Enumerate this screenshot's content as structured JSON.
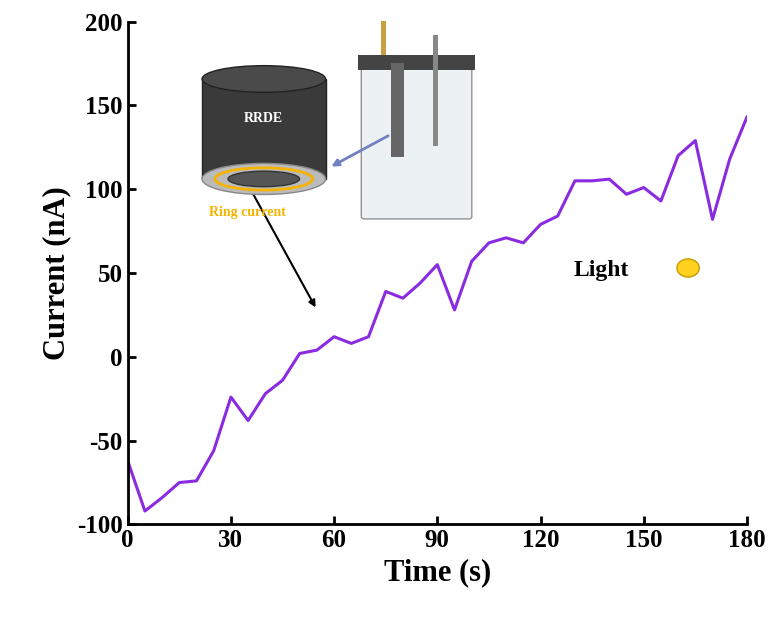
{
  "chart_data": {
    "type": "line",
    "x_label": "Time (s)",
    "y_label": "Current (nA)",
    "x": [
      0,
      5,
      10,
      15,
      20,
      25,
      30,
      35,
      40,
      45,
      50,
      55,
      60,
      65,
      70,
      75,
      80,
      85,
      90,
      95,
      100,
      105,
      110,
      115,
      120,
      125,
      130,
      135,
      140,
      145,
      150,
      155,
      160,
      165,
      170,
      175,
      180
    ],
    "values": [
      -62,
      -92,
      -84,
      -75,
      -74,
      -56,
      -24,
      -38,
      -22,
      -14,
      2,
      4,
      12,
      8,
      12,
      39,
      35,
      44,
      55,
      28,
      57,
      68,
      71,
      68,
      79,
      84,
      105,
      105,
      106,
      97,
      101,
      93,
      120,
      129,
      82,
      118,
      143
    ],
    "color": "#8a2be2",
    "xlim": [
      0,
      180
    ],
    "xticks": [
      0,
      30,
      60,
      90,
      120,
      150,
      180
    ],
    "ylim": [
      -100,
      200
    ],
    "yticks": [
      -100,
      -50,
      0,
      50,
      100,
      150,
      200
    ],
    "annotations": [
      "RRDE",
      "Ring current",
      "Light"
    ]
  }
}
